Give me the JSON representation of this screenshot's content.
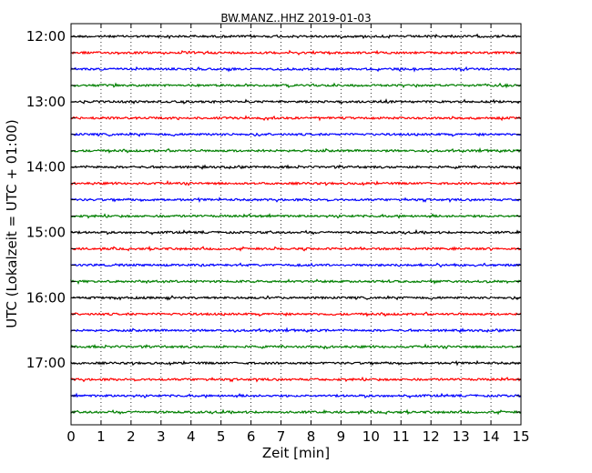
{
  "chart_data": {
    "type": "line",
    "title": "BW.MANZ..HHZ 2019-01-03",
    "xlabel": "Zeit  [min]",
    "ylabel": "UTC (Lokalzeit = UTC + 01:00)",
    "xlim": [
      0,
      15
    ],
    "x_ticks": [
      0,
      1,
      2,
      3,
      4,
      5,
      6,
      7,
      8,
      9,
      10,
      11,
      12,
      13,
      14,
      15
    ],
    "x_tick_labels": [
      "0",
      "1",
      "2",
      "3",
      "4",
      "5",
      "6",
      "7",
      "8",
      "9",
      "10",
      "11",
      "12",
      "13",
      "14",
      "15"
    ],
    "y_tick_labels": [
      "12:00",
      "13:00",
      "14:00",
      "15:00",
      "16:00",
      "17:00"
    ],
    "grid": "vertical dotted",
    "trace_colors": [
      "#000000",
      "#ff0000",
      "#0000ff",
      "#007f00"
    ],
    "traces": [
      {
        "start": "12:00"
      },
      {
        "start": "12:15"
      },
      {
        "start": "12:30"
      },
      {
        "start": "12:45"
      },
      {
        "start": "13:00"
      },
      {
        "start": "13:15"
      },
      {
        "start": "13:30"
      },
      {
        "start": "13:45"
      },
      {
        "start": "14:00"
      },
      {
        "start": "14:15"
      },
      {
        "start": "14:30"
      },
      {
        "start": "14:45"
      },
      {
        "start": "15:00"
      },
      {
        "start": "15:15"
      },
      {
        "start": "15:30"
      },
      {
        "start": "15:45"
      },
      {
        "start": "16:00"
      },
      {
        "start": "16:15"
      },
      {
        "start": "16:30"
      },
      {
        "start": "16:45"
      },
      {
        "start": "17:00"
      },
      {
        "start": "17:15"
      },
      {
        "start": "17:30"
      },
      {
        "start": "17:45"
      }
    ]
  }
}
